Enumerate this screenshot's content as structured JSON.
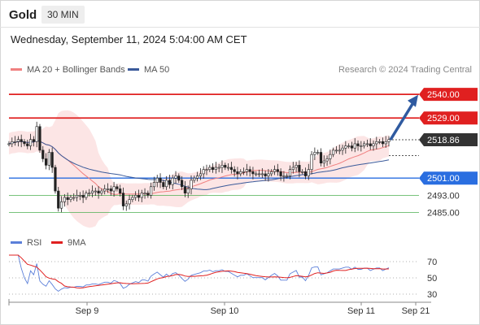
{
  "header": {
    "symbol": "Gold",
    "timeframe": "30 MIN",
    "datetime": "Wednesday, September 11, 2024 5:04:00 AM CET"
  },
  "legend": {
    "ma20": "MA 20 + Bollinger Bands",
    "ma50": "MA 50",
    "credit": "Research © 2024 Trading Central",
    "ma20_color": "#f08080",
    "ma50_color": "#3a5a9a"
  },
  "rsi_legend": {
    "rsi": "RSI",
    "ma9": "9MA",
    "rsi_color": "#5b7fd9",
    "ma9_color": "#e02020"
  },
  "chart_data": [
    {
      "type": "candlestick",
      "title": "",
      "ylim": [
        2478,
        2548
      ],
      "x_ticks": [
        "Sep 9",
        "Sep 10",
        "Sep 11",
        "Sep 21"
      ],
      "last_price": 2518.86,
      "levels": [
        {
          "value": 2540.0,
          "label": "2540.00",
          "kind": "resistance",
          "color": "#e02020"
        },
        {
          "value": 2529.0,
          "label": "2529.00",
          "kind": "resistance",
          "color": "#e02020"
        },
        {
          "value": 2518.86,
          "label": "2518.86",
          "kind": "last",
          "color": "#333333"
        },
        {
          "value": 2501.0,
          "label": "2501.00",
          "kind": "pivot",
          "color": "#2a6ee0"
        },
        {
          "value": 2493.0,
          "label": "2493.00",
          "kind": "support",
          "color": "#4caf50"
        },
        {
          "value": 2485.0,
          "label": "2485.00",
          "kind": "support",
          "color": "#4caf50"
        }
      ],
      "close_series": [
        2517,
        2518,
        2518,
        2519,
        2518,
        2517,
        2516,
        2519,
        2518,
        2525,
        2514,
        2510,
        2507,
        2513,
        2506,
        2495,
        2487,
        2490,
        2492,
        2491,
        2492,
        2492,
        2493,
        2493,
        2492,
        2494,
        2494,
        2495,
        2495,
        2494,
        2495,
        2496,
        2496,
        2495,
        2497,
        2496,
        2494,
        2488,
        2489,
        2491,
        2492,
        2493,
        2492,
        2494,
        2494,
        2493,
        2497,
        2499,
        2501,
        2499,
        2497,
        2500,
        2498,
        2501,
        2502,
        2500,
        2497,
        2494,
        2496,
        2500,
        2501,
        2502,
        2503,
        2505,
        2505,
        2506,
        2505,
        2506,
        2506,
        2507,
        2506,
        2506,
        2505,
        2504,
        2503,
        2504,
        2504,
        2505,
        2504,
        2503,
        2503,
        2503,
        2503,
        2502,
        2503,
        2504,
        2505,
        2504,
        2502,
        2502,
        2502,
        2505,
        2506,
        2507,
        2504,
        2504,
        2502,
        2505,
        2512,
        2513,
        2513,
        2508,
        2509,
        2510,
        2512,
        2514,
        2514,
        2514,
        2515,
        2516,
        2516,
        2515,
        2517,
        2516,
        2516,
        2517,
        2517,
        2516,
        2517,
        2518,
        2518,
        2517,
        2518,
        2519
      ]
    },
    {
      "type": "line",
      "title": "",
      "ylim": [
        20,
        80
      ],
      "y_ticks": [
        30,
        50,
        70
      ]
    }
  ]
}
